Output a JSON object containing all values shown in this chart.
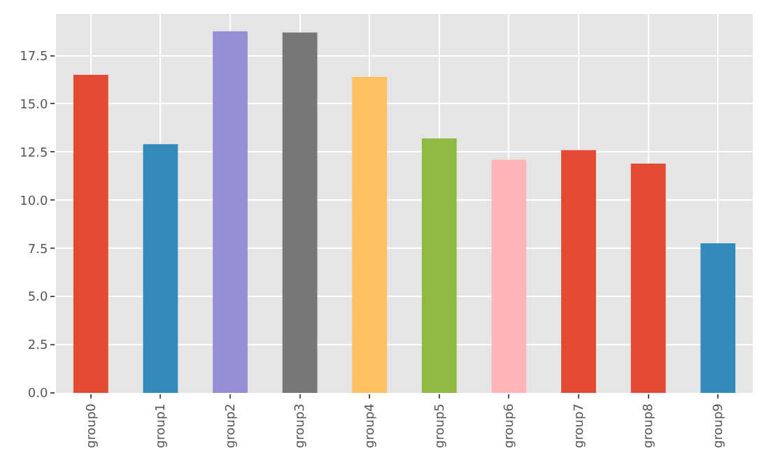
{
  "chart_data": {
    "type": "bar",
    "categories": [
      "group0",
      "group1",
      "group2",
      "group3",
      "group4",
      "group5",
      "group6",
      "group7",
      "group8",
      "group9"
    ],
    "values": [
      16.5,
      12.9,
      18.76,
      18.7,
      16.4,
      13.2,
      12.1,
      12.6,
      11.9,
      7.76
    ],
    "colors": [
      "#e24a33",
      "#348abd",
      "#988ed5",
      "#777777",
      "#fbc15e",
      "#8eba42",
      "#ffb5b8",
      "#e24a33",
      "#e24a33",
      "#348abd"
    ],
    "ylim": [
      0,
      19.66
    ],
    "yticks": [
      {
        "value": 0,
        "label": "0.0"
      },
      {
        "value": 2.5,
        "label": "2.5"
      },
      {
        "value": 5,
        "label": "5.0"
      },
      {
        "value": 7.5,
        "label": "7.5"
      },
      {
        "value": 10,
        "label": "10.0"
      },
      {
        "value": 12.5,
        "label": "12.5"
      },
      {
        "value": 15,
        "label": "15.0"
      },
      {
        "value": 17.5,
        "label": "17.5"
      }
    ],
    "grid": true
  }
}
